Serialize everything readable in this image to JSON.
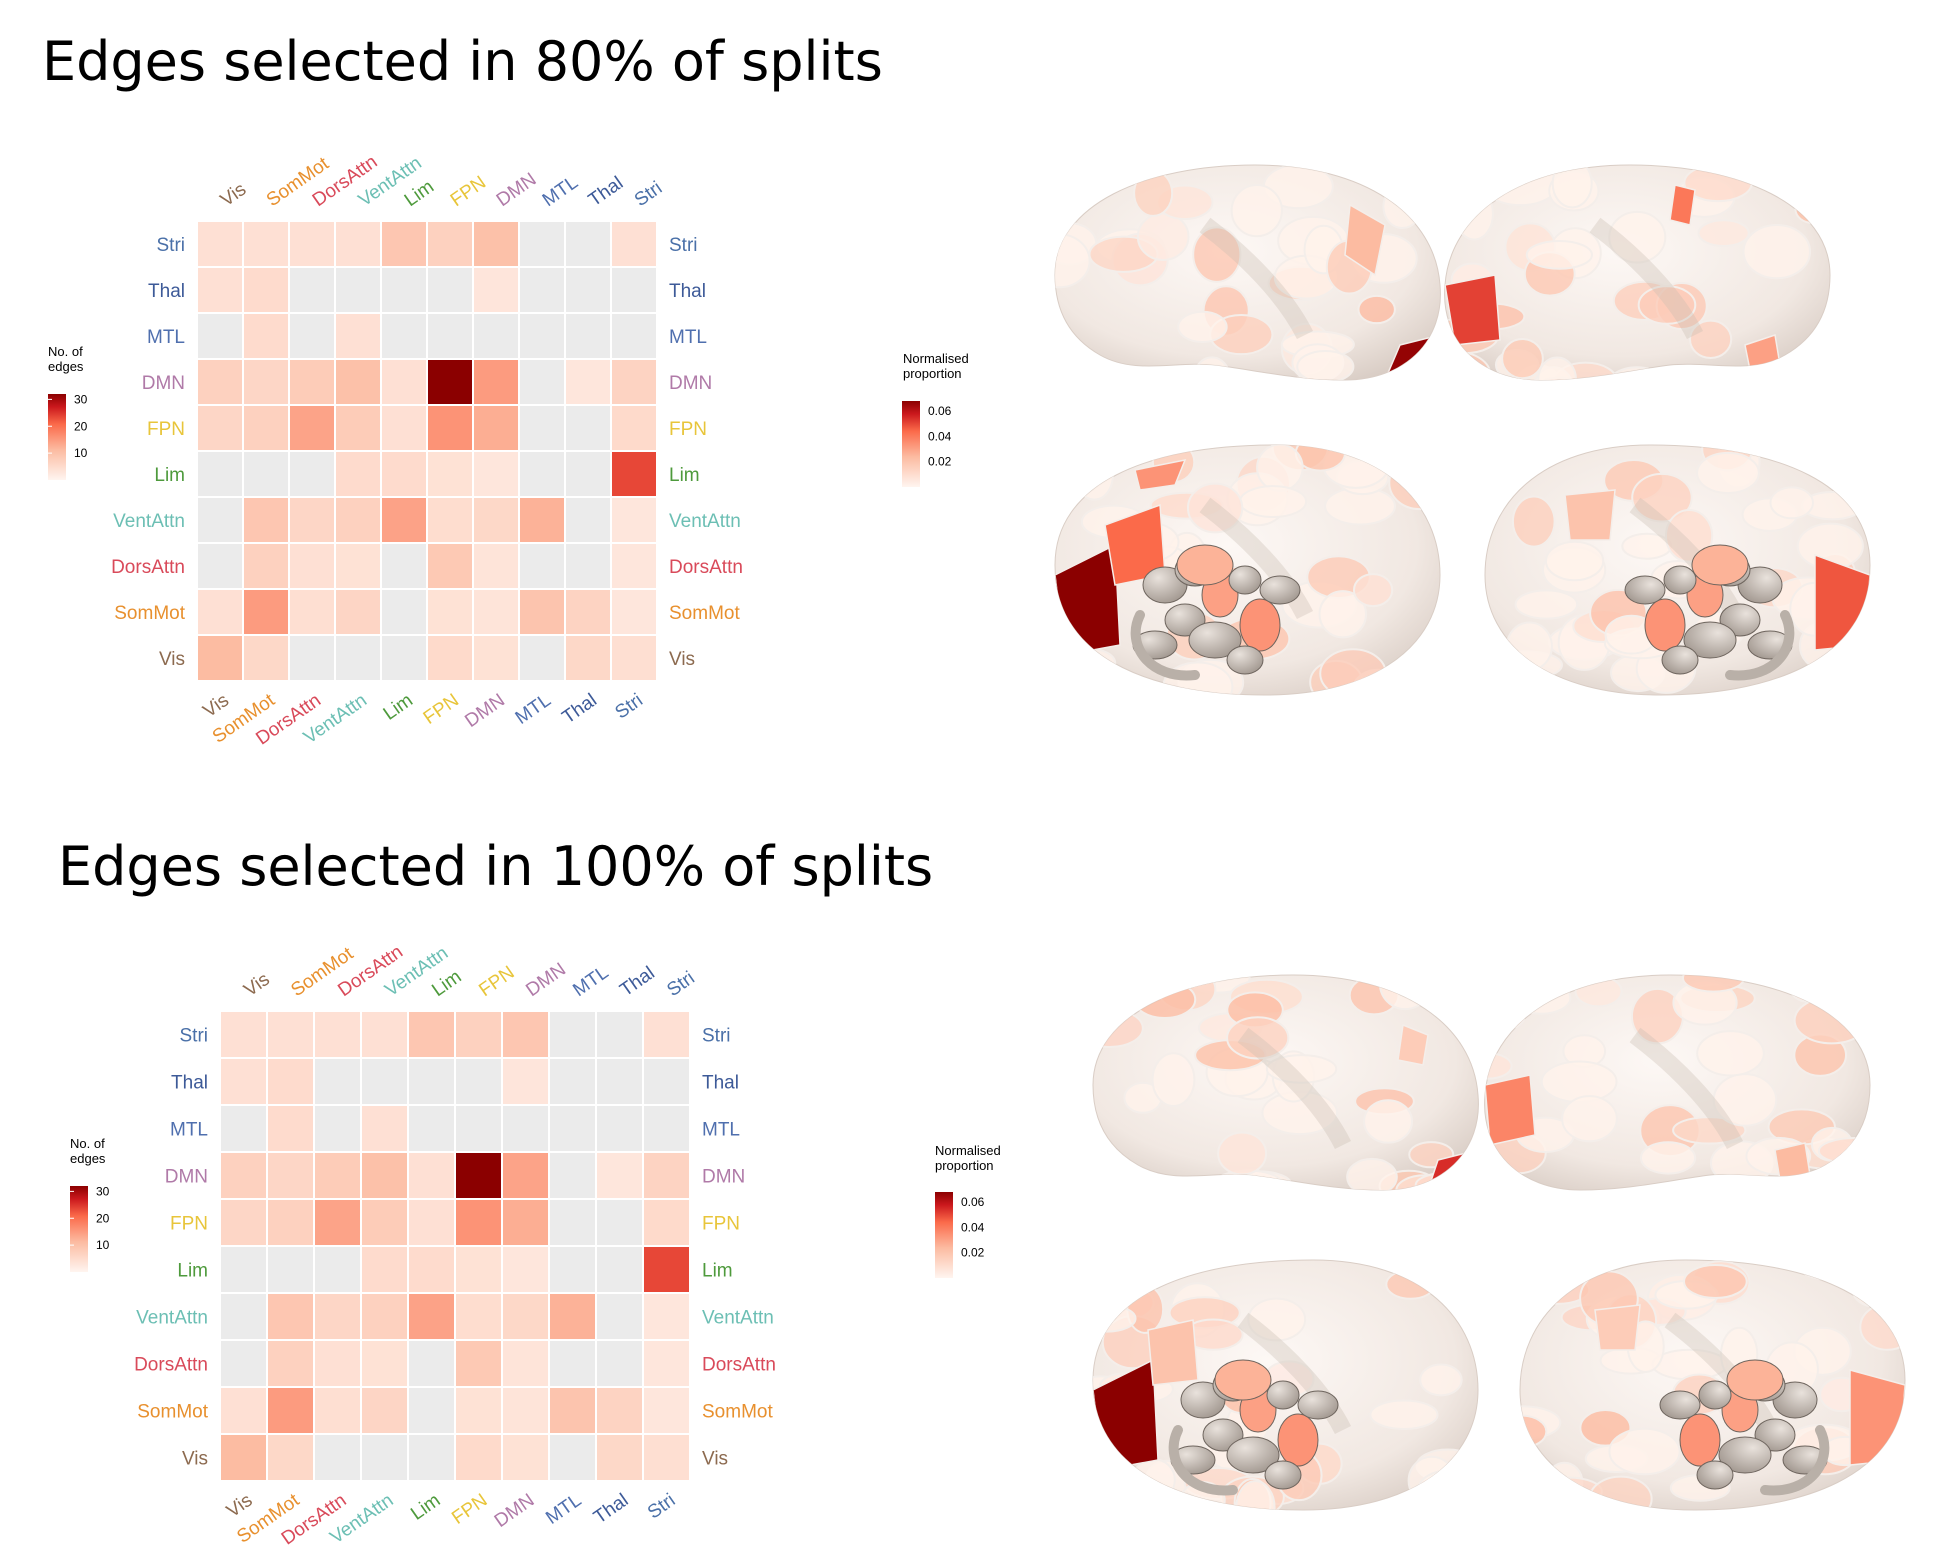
{
  "panels": [
    {
      "title": "Edges selected in 80% of splits",
      "legend_left": {
        "title": "No. of\nedges",
        "ticks": [
          10,
          20,
          30
        ]
      },
      "legend_right": {
        "title": "Normalised\nproportion",
        "ticks": [
          "0.02",
          "0.04",
          "0.06"
        ]
      }
    },
    {
      "title": "Edges selected in 100% of splits",
      "legend_left": {
        "title": "No. of\nedges",
        "ticks": [
          10,
          20,
          30
        ]
      },
      "legend_right": {
        "title": "Normalised\nproportion",
        "ticks": [
          "0.02",
          "0.04",
          "0.06"
        ]
      }
    }
  ],
  "networks": [
    {
      "name": "Vis",
      "color": "#8c6a4f"
    },
    {
      "name": "SomMot",
      "color": "#e8902e"
    },
    {
      "name": "DorsAttn",
      "color": "#d94a5a"
    },
    {
      "name": "VentAttn",
      "color": "#6cbfb4"
    },
    {
      "name": "Lim",
      "color": "#4e9a3c"
    },
    {
      "name": "FPN",
      "color": "#e8c53a"
    },
    {
      "name": "DMN",
      "color": "#b07aa8"
    },
    {
      "name": "MTL",
      "color": "#4f6fae"
    },
    {
      "name": "Thal",
      "color": "#3d5a98"
    },
    {
      "name": "Stri",
      "color": "#4a70a8"
    }
  ],
  "chart_data": [
    {
      "type": "heatmap",
      "title": "Edges selected in 80% of splits",
      "rows": [
        "Stri",
        "Thal",
        "MTL",
        "DMN",
        "FPN",
        "Lim",
        "VentAttn",
        "DorsAttn",
        "SomMot",
        "Vis"
      ],
      "columns": [
        "Vis",
        "SomMot",
        "DorsAttn",
        "VentAttn",
        "Lim",
        "FPN",
        "DMN",
        "MTL",
        "Thal",
        "Stri"
      ],
      "lower_triangle": {
        "measure": "No. of edges",
        "range": [
          0,
          32
        ],
        "values": [
          [
            4,
            4,
            4,
            4,
            9,
            7,
            10,
            0,
            0,
            4
          ],
          [
            4,
            5,
            0,
            0,
            0,
            0,
            3,
            0,
            0,
            null
          ],
          [
            0,
            5,
            0,
            4,
            0,
            0,
            0,
            0,
            null,
            null
          ],
          [
            7,
            6,
            8,
            10,
            4,
            32,
            15,
            null,
            null,
            null
          ],
          [
            6,
            7,
            14,
            8,
            4,
            16,
            null,
            null,
            null,
            null
          ],
          [
            0,
            0,
            0,
            5,
            5,
            null,
            null,
            null,
            null,
            null
          ],
          [
            0,
            9,
            6,
            7,
            null,
            null,
            null,
            null,
            null,
            null
          ],
          [
            0,
            7,
            4,
            null,
            null,
            null,
            null,
            null,
            null,
            null
          ],
          [
            4,
            15,
            null,
            null,
            null,
            null,
            null,
            null,
            null,
            null
          ],
          [
            11,
            null,
            null,
            null,
            null,
            null,
            null,
            null,
            null,
            null
          ]
        ]
      },
      "upper_triangle": {
        "measure": "Normalised proportion",
        "range": [
          0,
          0.068
        ],
        "values": [
          [
            null,
            null,
            null,
            null,
            null,
            null,
            null,
            null,
            null,
            0.035
          ],
          [
            null,
            null,
            null,
            null,
            null,
            null,
            null,
            null,
            0,
            0
          ],
          [
            null,
            null,
            null,
            null,
            null,
            null,
            null,
            0,
            0,
            0
          ],
          [
            null,
            null,
            null,
            null,
            null,
            null,
            0.015,
            0,
            0.006,
            0.014
          ],
          [
            null,
            null,
            null,
            null,
            null,
            0.03,
            0.027,
            0,
            0,
            0.011
          ],
          [
            null,
            null,
            null,
            null,
            0.068,
            0.008,
            0.006,
            0,
            0,
            0.05
          ],
          [
            null,
            null,
            null,
            0.018,
            0.03,
            0.01,
            0.012,
            0.026,
            0,
            0.006
          ],
          [
            null,
            null,
            0.006,
            0.008,
            0,
            0.018,
            0.007,
            0,
            0,
            0.006
          ],
          [
            null,
            0.021,
            0.009,
            0.013,
            0,
            0.008,
            0.007,
            0.02,
            0.014,
            0.006
          ],
          [
            0.015,
            0.012,
            0,
            0,
            0,
            0.011,
            0.008,
            0,
            0.012,
            0.009
          ]
        ]
      },
      "legend_left": {
        "title": "No. of edges",
        "ticks": [
          10,
          20,
          30
        ]
      },
      "legend_right": {
        "title": "Normalised proportion",
        "ticks": [
          0.02,
          0.04,
          0.06
        ]
      }
    },
    {
      "type": "heatmap",
      "title": "Edges selected in 100% of splits",
      "rows": [
        "Stri",
        "Thal",
        "MTL",
        "DMN",
        "FPN",
        "Lim",
        "VentAttn",
        "DorsAttn",
        "SomMot",
        "Vis"
      ],
      "columns": [
        "Vis",
        "SomMot",
        "DorsAttn",
        "VentAttn",
        "Lim",
        "FPN",
        "DMN",
        "MTL",
        "Thal",
        "Stri"
      ],
      "lower_triangle": {
        "measure": "No. of edges",
        "range": [
          0,
          32
        ],
        "values": [
          [
            4,
            4,
            4,
            4,
            9,
            7,
            9,
            0,
            0,
            4
          ],
          [
            4,
            5,
            0,
            0,
            0,
            0,
            3,
            0,
            0,
            null
          ],
          [
            0,
            5,
            0,
            4,
            0,
            0,
            0,
            0,
            null,
            null
          ],
          [
            7,
            6,
            8,
            10,
            4,
            32,
            14,
            null,
            null,
            null
          ],
          [
            6,
            7,
            14,
            8,
            4,
            16,
            null,
            null,
            null,
            null
          ],
          [
            0,
            0,
            0,
            5,
            5,
            null,
            null,
            null,
            null,
            null
          ],
          [
            0,
            9,
            6,
            7,
            null,
            null,
            null,
            null,
            null,
            null
          ],
          [
            0,
            7,
            4,
            null,
            null,
            null,
            null,
            null,
            null,
            null
          ],
          [
            4,
            15,
            null,
            null,
            null,
            null,
            null,
            null,
            null,
            null
          ],
          [
            11,
            null,
            null,
            null,
            null,
            null,
            null,
            null,
            null,
            null
          ]
        ]
      },
      "upper_triangle": {
        "measure": "Normalised proportion",
        "range": [
          0,
          0.068
        ],
        "values": [
          [
            null,
            null,
            null,
            null,
            null,
            null,
            null,
            null,
            null,
            0.035
          ],
          [
            null,
            null,
            null,
            null,
            null,
            null,
            null,
            null,
            0,
            0
          ],
          [
            null,
            null,
            null,
            null,
            null,
            null,
            null,
            0,
            0,
            0
          ],
          [
            null,
            null,
            null,
            null,
            null,
            null,
            0.015,
            0,
            0.006,
            0.014
          ],
          [
            null,
            null,
            null,
            null,
            null,
            0.03,
            0.027,
            0,
            0,
            0.011
          ],
          [
            null,
            null,
            null,
            null,
            0.068,
            0.008,
            0.006,
            0,
            0,
            0.05
          ],
          [
            null,
            null,
            null,
            0.018,
            0.03,
            0.01,
            0.012,
            0.026,
            0,
            0.006
          ],
          [
            null,
            null,
            0.006,
            0.008,
            0,
            0.018,
            0.007,
            0,
            0,
            0.006
          ],
          [
            null,
            0.021,
            0.009,
            0.013,
            0,
            0.008,
            0.007,
            0.02,
            0.014,
            0.006
          ],
          [
            0.015,
            0.012,
            0,
            0,
            0,
            0.011,
            0.008,
            0,
            0.012,
            0.009
          ]
        ]
      },
      "legend_left": {
        "title": "No. of edges",
        "ticks": [
          10,
          20,
          30
        ]
      },
      "legend_right": {
        "title": "Normalised proportion",
        "ticks": [
          0.02,
          0.04,
          0.06
        ]
      }
    }
  ]
}
